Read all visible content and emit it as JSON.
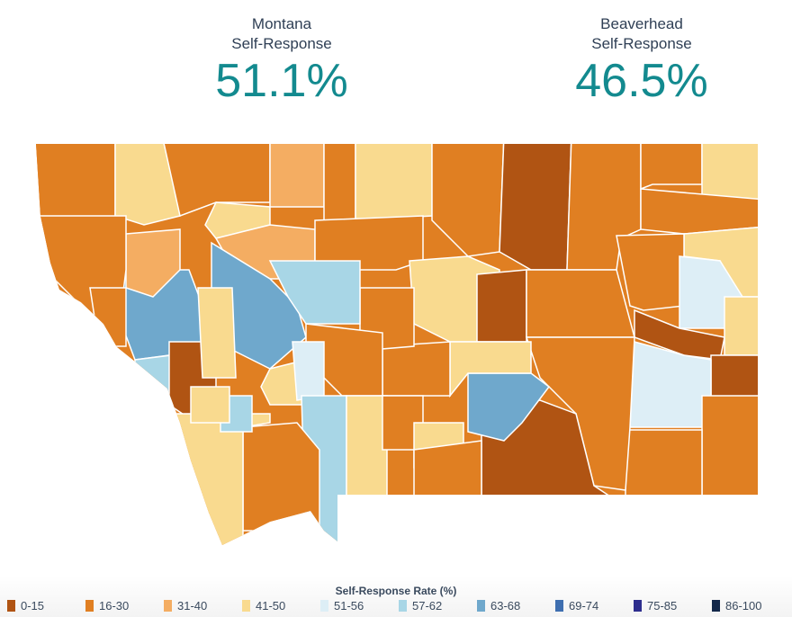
{
  "stats": {
    "state": {
      "label_line1": "Montana",
      "label_line2": "Self-Response",
      "value": "51.1%"
    },
    "county": {
      "label_line1": "Beaverhead",
      "label_line2": "Self-Response",
      "value": "46.5%"
    }
  },
  "legend": {
    "title": "Self-Response Rate (%)",
    "bins": [
      {
        "label": "0-15",
        "color": "#b05413"
      },
      {
        "label": "16-30",
        "color": "#e07f22"
      },
      {
        "label": "31-40",
        "color": "#f4ad62"
      },
      {
        "label": "41-50",
        "color": "#f9da8f"
      },
      {
        "label": "51-56",
        "color": "#ddeef6"
      },
      {
        "label": "57-62",
        "color": "#a8d6e6"
      },
      {
        "label": "63-68",
        "color": "#6fa8cc"
      },
      {
        "label": "69-74",
        "color": "#3f6fb0"
      },
      {
        "label": "75-85",
        "color": "#2e2e8e"
      },
      {
        "label": "86-100",
        "color": "#13284a"
      }
    ]
  }
}
